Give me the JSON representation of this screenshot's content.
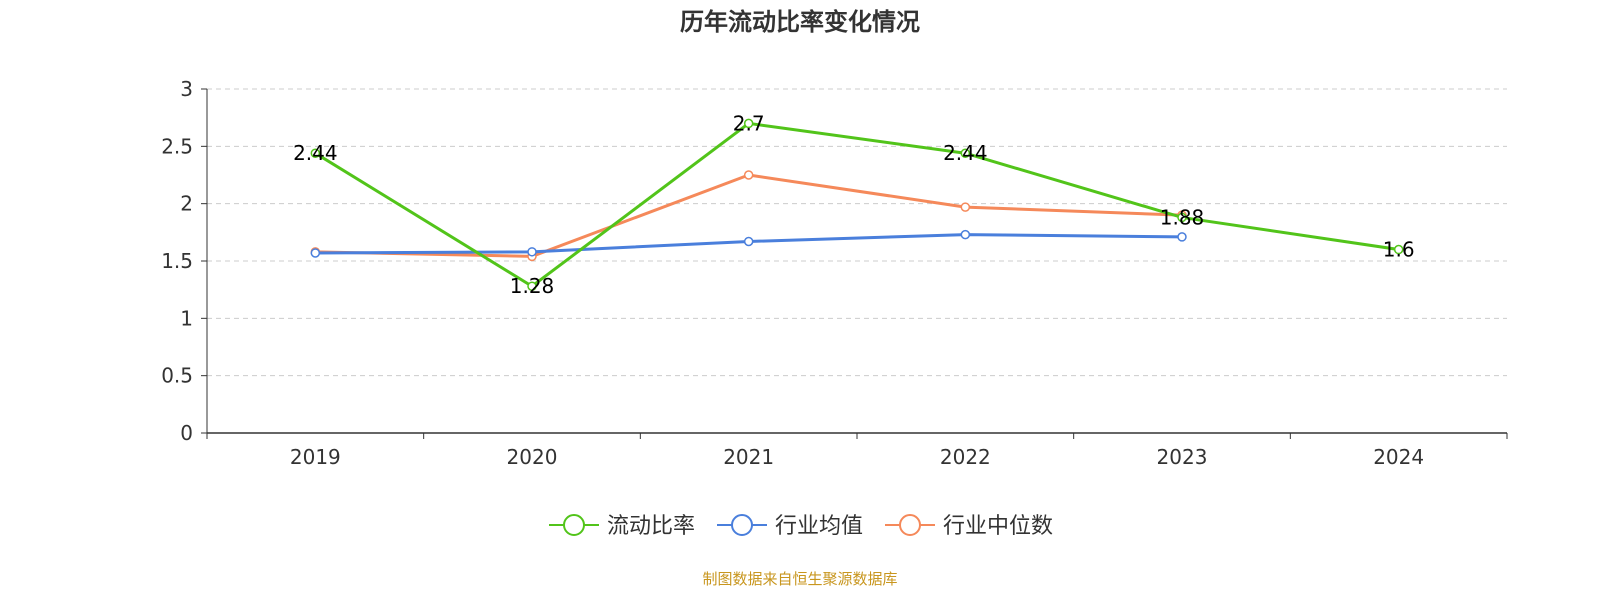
{
  "chart_data": {
    "type": "line",
    "title": "历年流动比率变化情况",
    "categories": [
      "2019",
      "2020",
      "2021",
      "2022",
      "2023",
      "2024"
    ],
    "ylim": [
      0,
      3
    ],
    "yticks": [
      "0",
      "0.5",
      "1",
      "1.5",
      "2",
      "2.5",
      "3"
    ],
    "grid": true,
    "legend_position": "bottom",
    "series": [
      {
        "name": "流动比率",
        "color": "#52c41a",
        "values": [
          2.44,
          1.28,
          2.7,
          2.44,
          1.88,
          1.6
        ],
        "labels": [
          "2.44",
          "1.28",
          "2.7",
          "2.44",
          "1.88",
          "1.6"
        ]
      },
      {
        "name": "行业均值",
        "color": "#4a7fdc",
        "values": [
          1.57,
          1.58,
          1.67,
          1.73,
          1.71,
          null
        ]
      },
      {
        "name": "行业中位数",
        "color": "#f5895a",
        "values": [
          1.58,
          1.54,
          2.25,
          1.97,
          1.9,
          null
        ]
      }
    ],
    "source": "制图数据来自恒生聚源数据库",
    "source_color": "#c8961e"
  }
}
